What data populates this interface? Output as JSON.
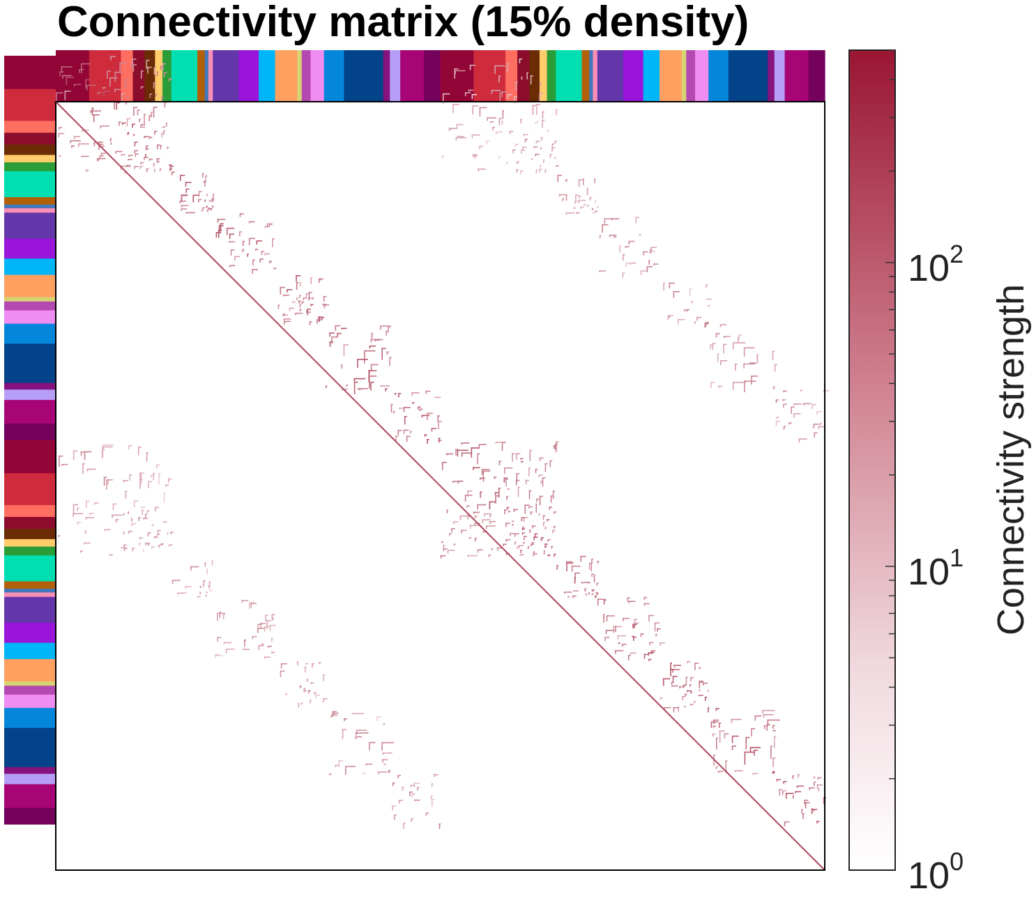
{
  "chart_data": {
    "type": "heatmap",
    "title": "Connectivity matrix (15% density)",
    "colorbar": {
      "label": "Connectivity strength",
      "scale": "log",
      "range": [
        1,
        500
      ],
      "ticks": [
        {
          "value": 1,
          "base": "10",
          "exp": "0"
        },
        {
          "value": 10,
          "base": "10",
          "exp": "1"
        },
        {
          "value": 100,
          "base": "10",
          "exp": "2"
        }
      ],
      "color_low": "#ffffff",
      "color_high": "#9a1632"
    },
    "matrix": {
      "hemispheres": 2,
      "density": 0.15,
      "module_colors": [
        "#920537",
        "#ce2b3c",
        "#ff6f61",
        "#8b0c2c",
        "#6b2b05",
        "#ffcd6b",
        "#2a9c38",
        "#00dfb1",
        "#b16007",
        "#4376ba",
        "#f88fb4",
        "#6337a9",
        "#9915d9",
        "#00b5f8",
        "#ffa061",
        "#d7d372",
        "#b44ab1",
        "#f08df2",
        "#0486da",
        "#034389",
        "#85127f",
        "#b69ef8",
        "#a70475",
        "#74015b"
      ]
    }
  }
}
